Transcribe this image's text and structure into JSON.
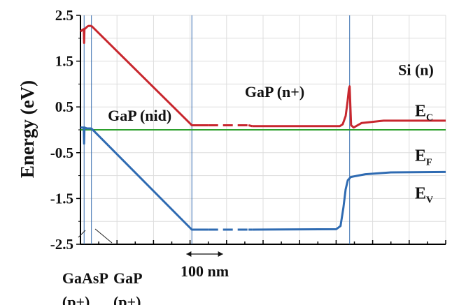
{
  "chart_data": {
    "type": "line",
    "title": "",
    "ylabel": "Energy (eV)",
    "xlabel": "",
    "ylim": [
      -2.5,
      2.5
    ],
    "y_ticks": [
      "2.5",
      "1.5",
      "0.5",
      "-0.5",
      "-1.5",
      "-2.5"
    ],
    "y_tick_values": [
      2.5,
      1.5,
      0.5,
      -0.5,
      -1.5,
      -2.5
    ],
    "x_unit": "nm",
    "scale_bar": {
      "label": "100 nm",
      "length_nm": 100
    },
    "x_range_nm": [
      0,
      1000
    ],
    "grid": true,
    "colors": {
      "conduction": "#c8272e",
      "valence": "#2f6bb2",
      "fermi": "#2ca02c",
      "divider": "#3a6fb0"
    },
    "series": [
      {
        "name": "E",
        "sub": "C",
        "segments": [
          [
            [
              0,
              2.15
            ],
            [
              5,
              2.18
            ],
            [
              9,
              2.2
            ],
            [
              10,
              1.9
            ],
            [
              11,
              2.2
            ],
            [
              14,
              2.22
            ],
            [
              18,
              2.25
            ],
            [
              22,
              2.27
            ],
            [
              30,
              2.27
            ]
          ],
          [
            [
              30,
              2.27
            ],
            [
              305,
              0.1
            ],
            [
              470,
              0.08
            ]
          ],
          [
            [
              470,
              0.08
            ],
            [
              710,
              0.08
            ],
            [
              718,
              0.12
            ],
            [
              726,
              0.3
            ],
            [
              731,
              0.6
            ],
            [
              735,
              0.9
            ],
            [
              737,
              0.95
            ],
            [
              741,
              0.1
            ],
            [
              748,
              0.05
            ],
            [
              770,
              0.15
            ],
            [
              830,
              0.2
            ],
            [
              1000,
              0.2
            ]
          ]
        ]
      },
      {
        "name": "E",
        "sub": "F",
        "segments": [
          [
            [
              0,
              0.0
            ],
            [
              1000,
              0.0
            ]
          ]
        ]
      },
      {
        "name": "E",
        "sub": "V",
        "segments": [
          [
            [
              0,
              0.05
            ],
            [
              5,
              0.05
            ],
            [
              9,
              0.05
            ],
            [
              10,
              -0.3
            ],
            [
              11,
              0.05
            ],
            [
              18,
              0.03
            ],
            [
              30,
              0.03
            ]
          ],
          [
            [
              30,
              0.03
            ],
            [
              305,
              -2.18
            ],
            [
              470,
              -2.18
            ]
          ],
          [
            [
              470,
              -2.18
            ],
            [
              700,
              -2.17
            ],
            [
              712,
              -2.1
            ],
            [
              720,
              -1.7
            ],
            [
              726,
              -1.3
            ],
            [
              732,
              -1.1
            ],
            [
              740,
              -1.03
            ],
            [
              780,
              -0.97
            ],
            [
              850,
              -0.93
            ],
            [
              1000,
              -0.92
            ]
          ]
        ]
      }
    ],
    "dashed_x_range": [
      350,
      460
    ],
    "region_boundaries_nm": [
      10,
      30,
      305,
      737
    ],
    "annotations": [
      {
        "text": "Si (n)",
        "x": 870,
        "y": 1.2
      },
      {
        "text": "GaP (n+)",
        "x": 450,
        "y": 0.72
      },
      {
        "text": "GaP (nid)",
        "x": 75,
        "y": 0.2
      },
      {
        "text": "GaAsP",
        "x": -50,
        "y": -3.35,
        "sub": "(p+)"
      },
      {
        "text": "GaP",
        "x": 90,
        "y": -3.35,
        "sub": "(p+)"
      }
    ],
    "legend": [
      {
        "name": "E",
        "sub": "C",
        "y": 0.3
      },
      {
        "name": "E",
        "sub": "F",
        "y": -0.68
      },
      {
        "name": "E",
        "sub": "V",
        "y": -1.5
      }
    ]
  }
}
